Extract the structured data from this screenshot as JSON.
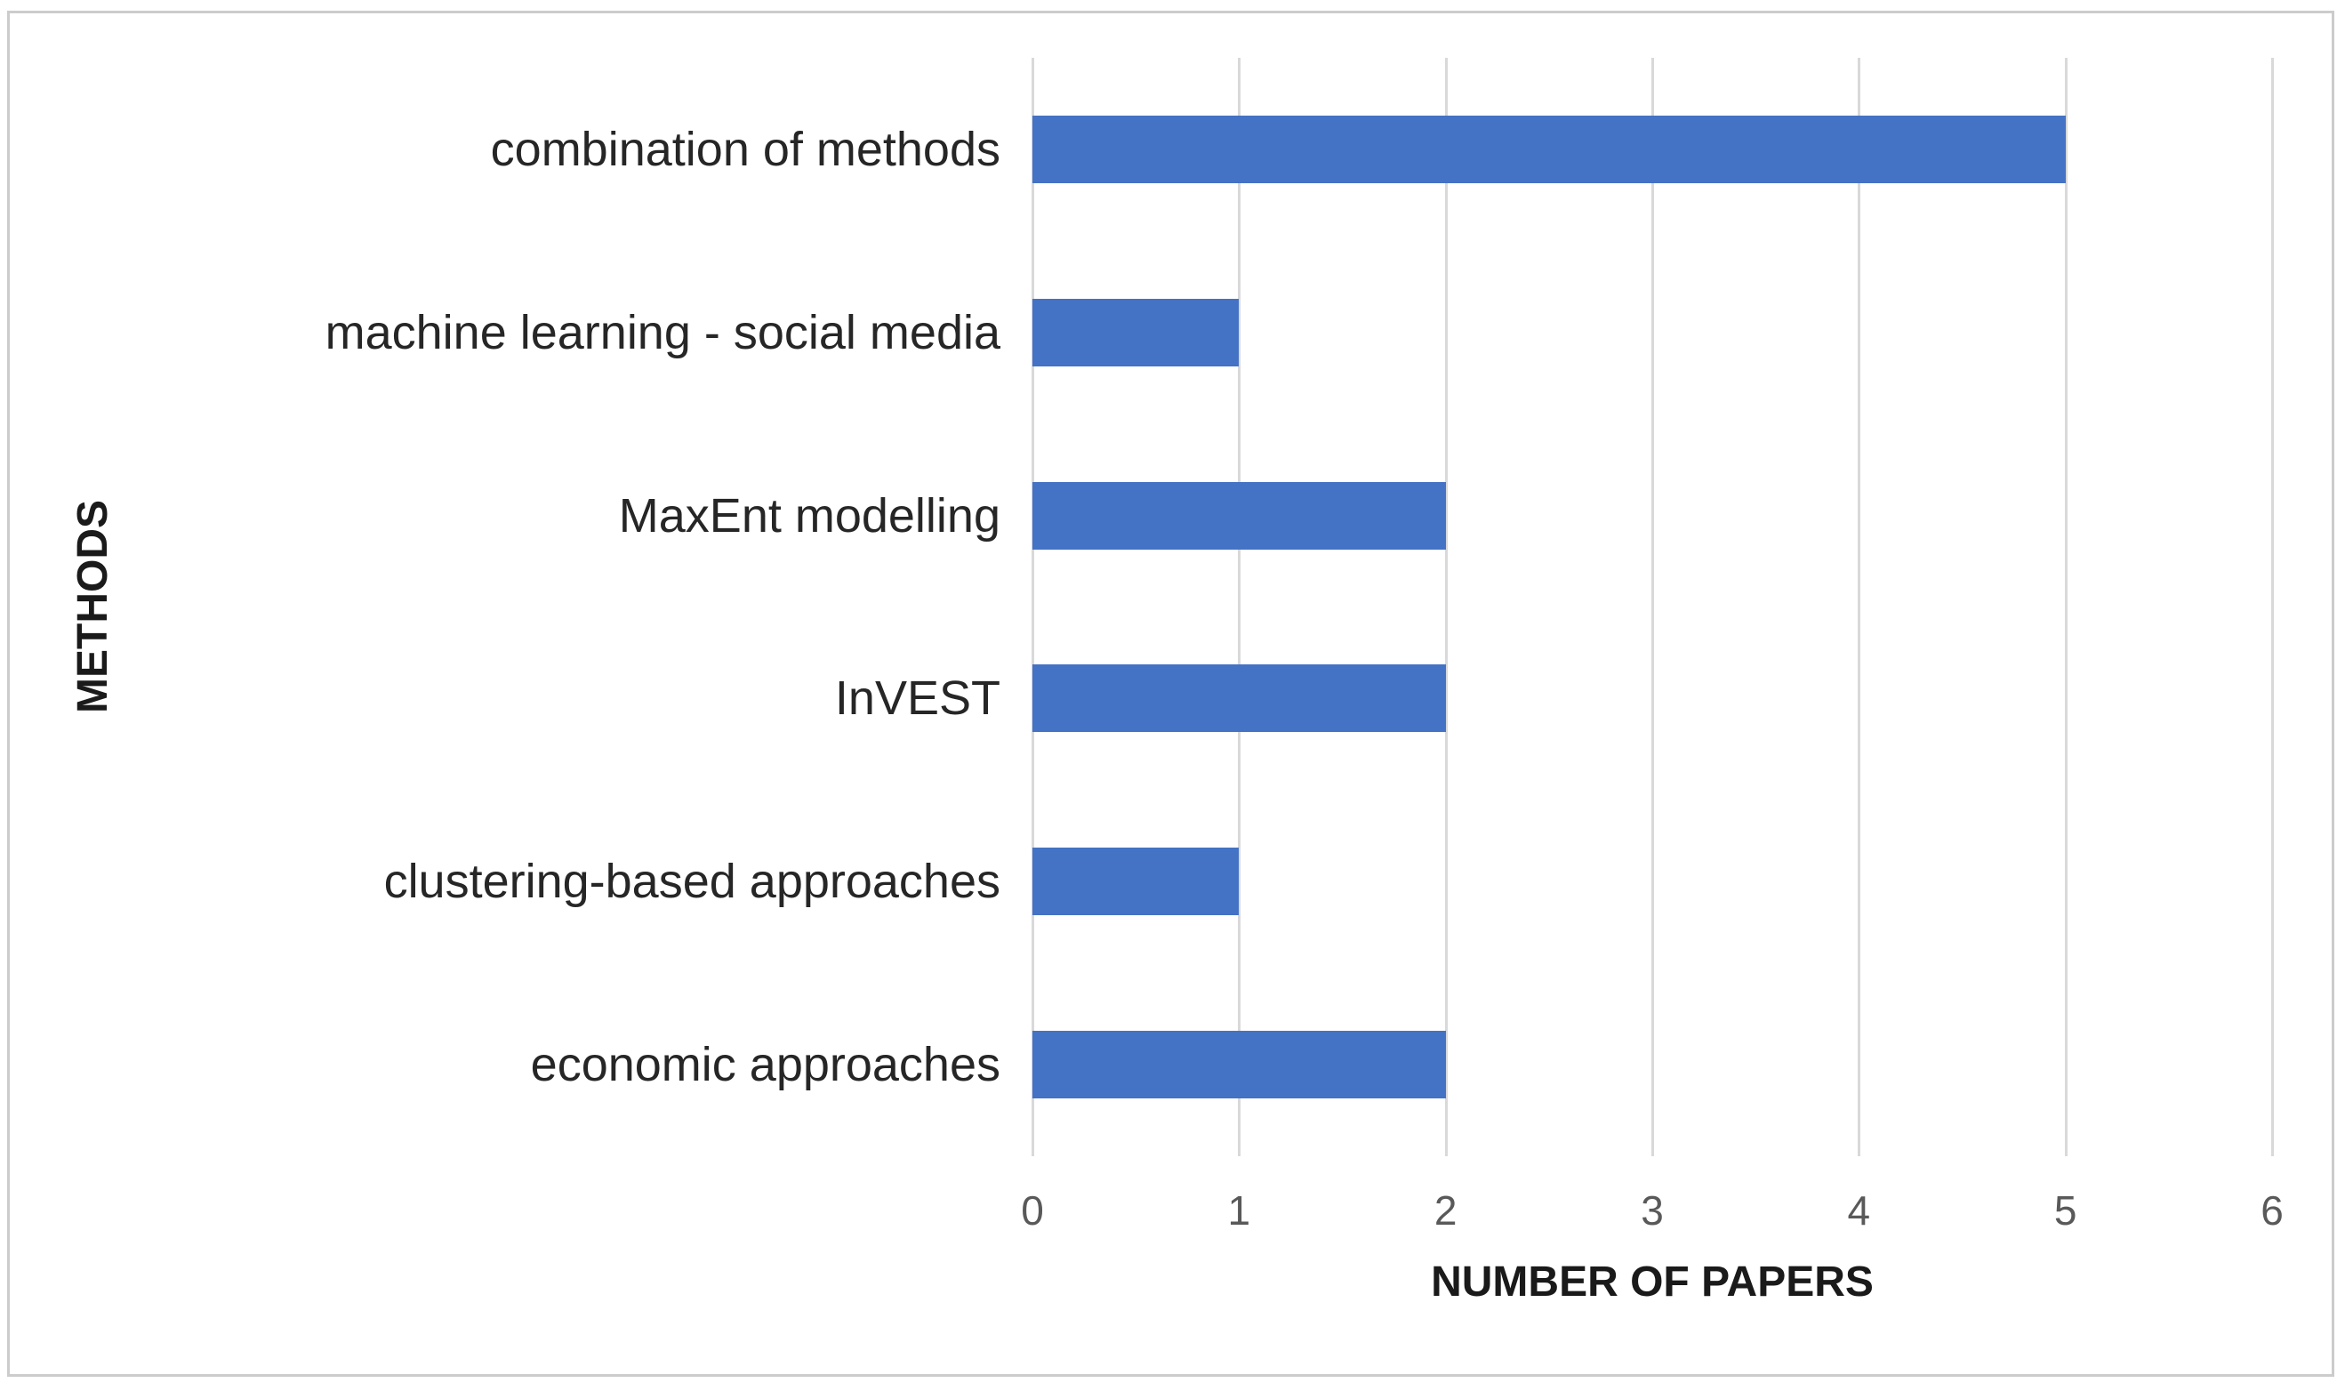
{
  "frame": {
    "border_color": "#cccccc",
    "background_color": "#ffffff"
  },
  "chart_data": {
    "type": "bar",
    "orientation": "horizontal",
    "categories": [
      "combination of methods",
      "machine learning - social media",
      "MaxEnt modelling",
      "InVEST",
      "clustering-based approaches",
      "economic approaches"
    ],
    "values": [
      5,
      1,
      2,
      2,
      1,
      2
    ],
    "xlabel": "NUMBER OF PAPERS",
    "ylabel": "METHODS",
    "xlim": [
      0,
      6
    ],
    "xticks": [
      "0",
      "1",
      "2",
      "3",
      "4",
      "5",
      "6"
    ],
    "grid": "vertical-on",
    "legend": "none",
    "title": "",
    "bar_color": "#4472C4",
    "gridline_color": "#D9D9D9",
    "tick_label_color": "#595959",
    "category_label_color": "#262626",
    "axis_title_color": "#1a1a1a"
  }
}
